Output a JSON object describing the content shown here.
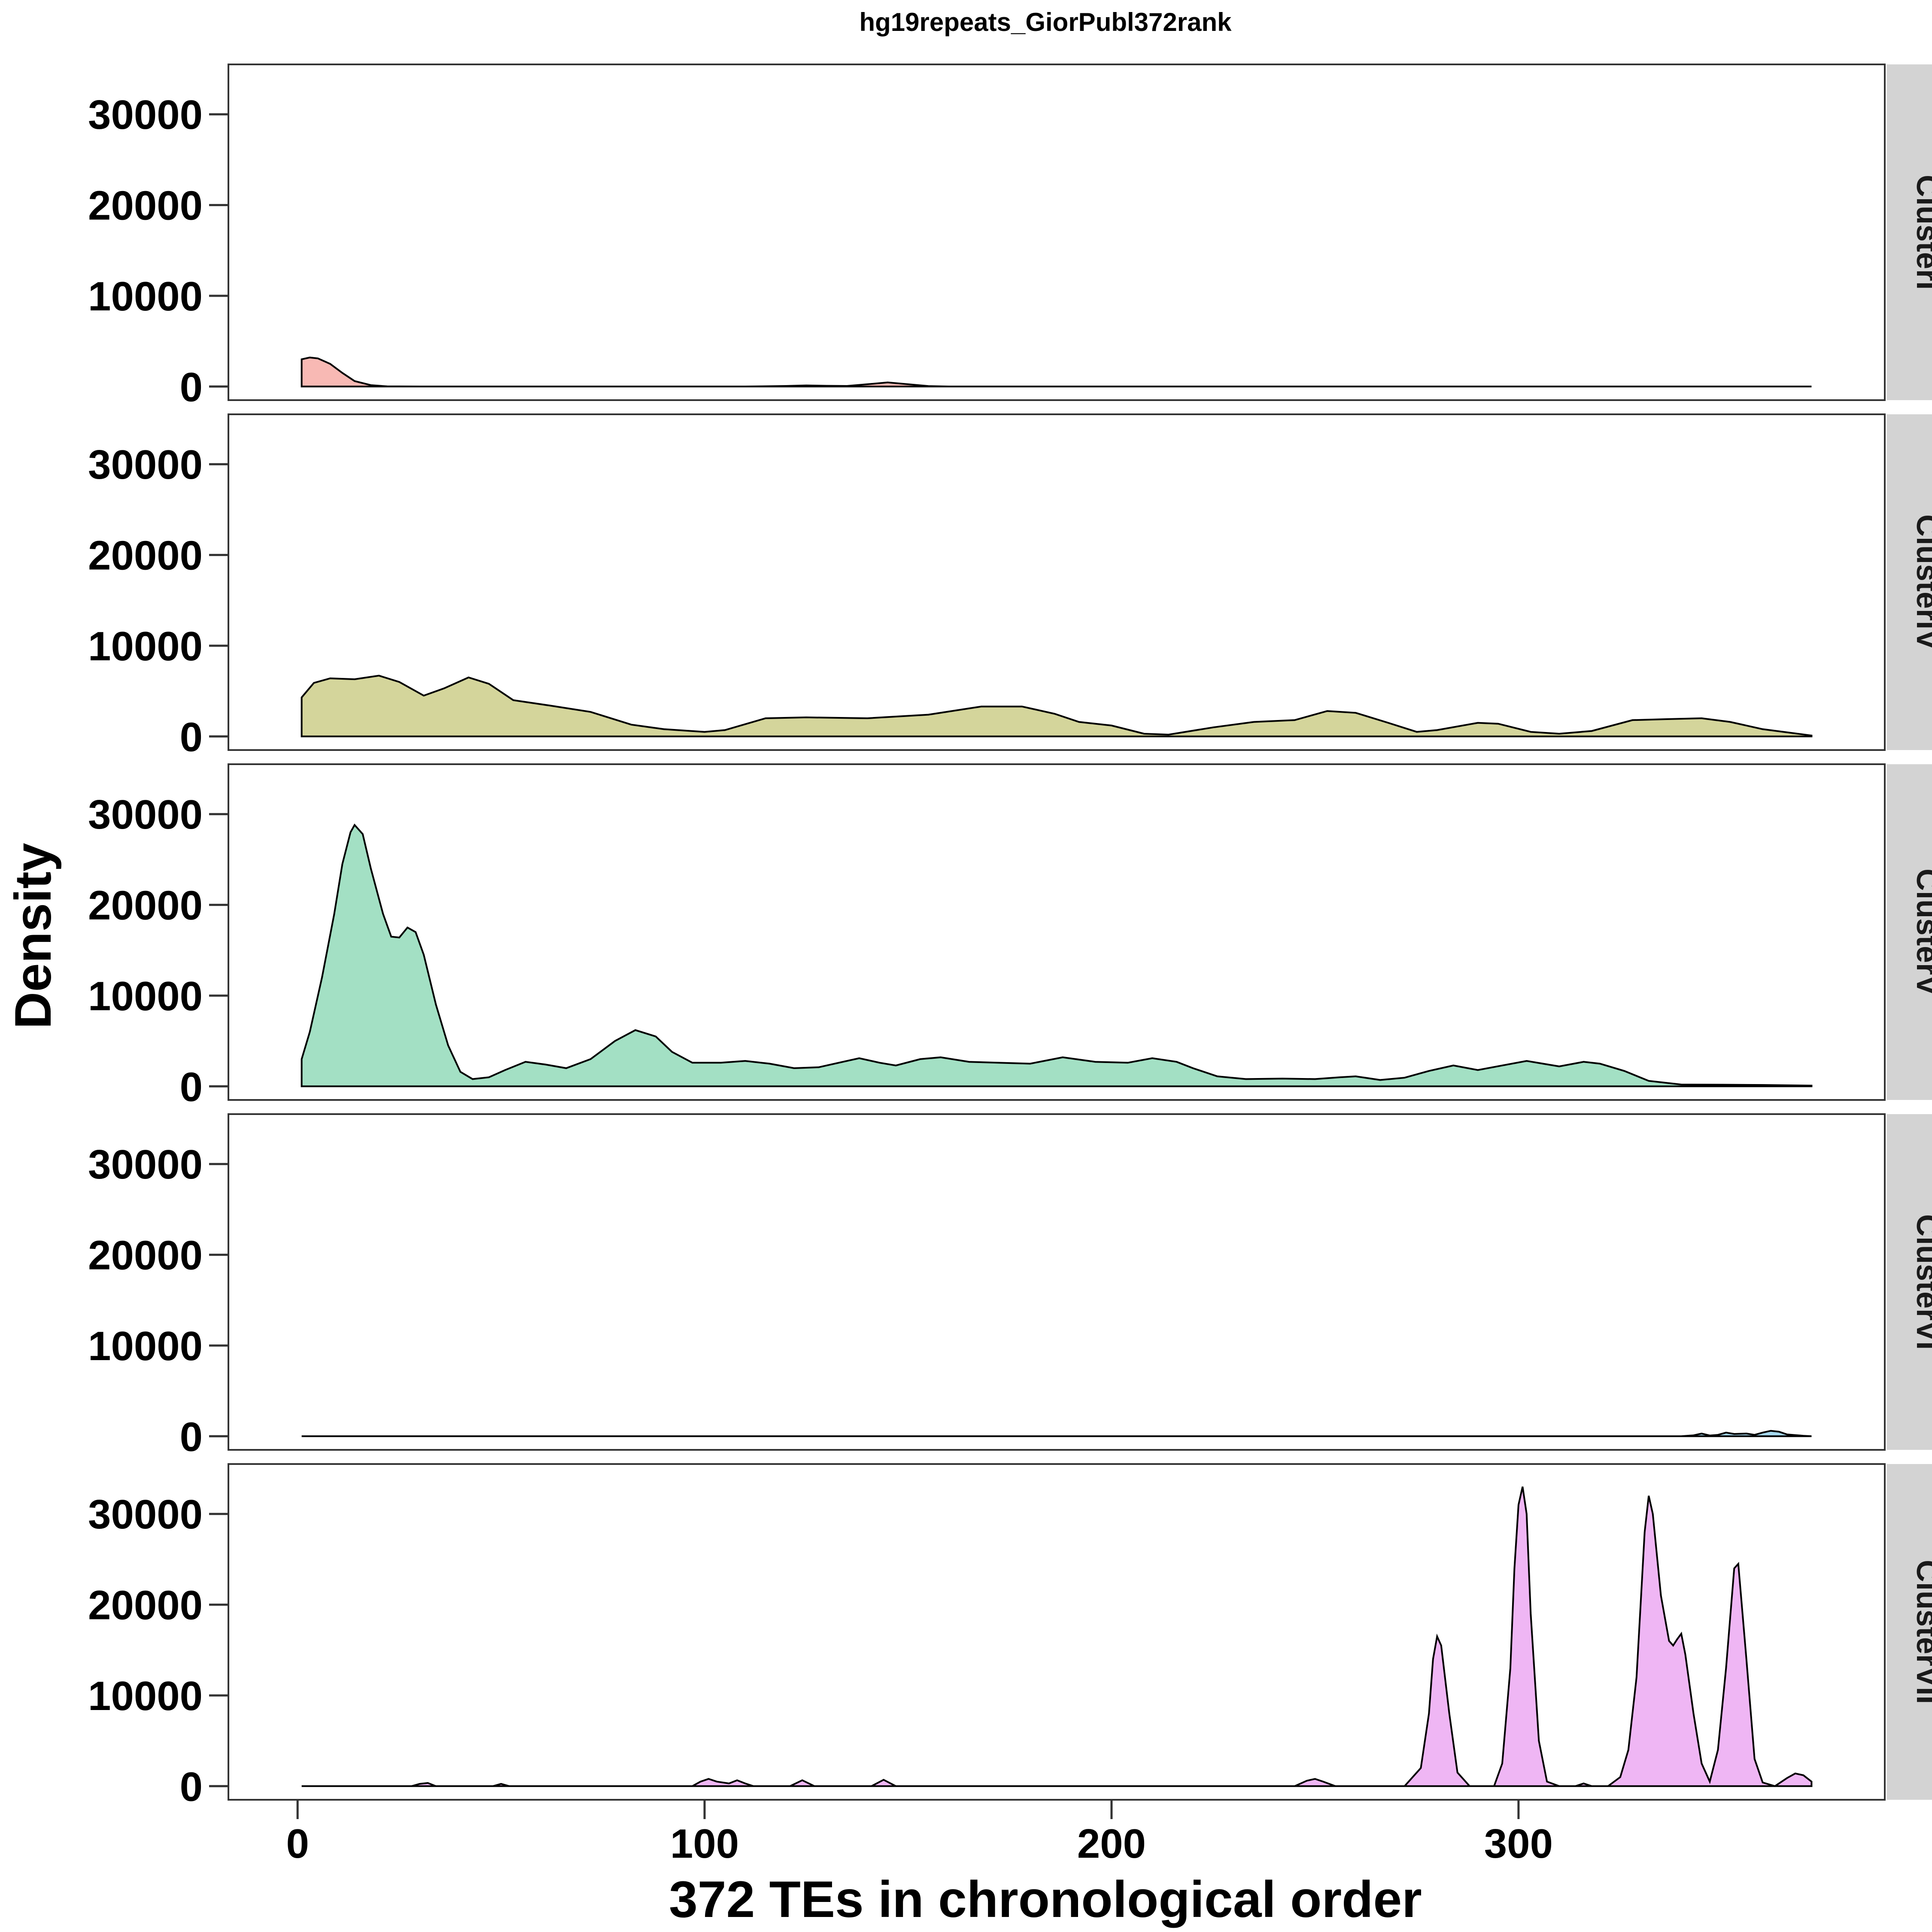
{
  "chart_data": {
    "type": "area",
    "title": "hg19repeats_GiorPubl372rank",
    "xlabel": "372 TEs in chronological order",
    "ylabel": "Density",
    "xlim": [
      -17,
      390
    ],
    "ylim": [
      -1500,
      35500
    ],
    "x_ticks": [
      0,
      100,
      200,
      300
    ],
    "y_ticks": [
      0,
      10000,
      20000,
      30000
    ],
    "y_tick_labels": [
      "0",
      "10000",
      "20000",
      "30000"
    ],
    "x_tick_labels": [
      "0",
      "100",
      "200",
      "300"
    ],
    "grid": false,
    "legend": "none",
    "series": [
      {
        "name": "ClusterI",
        "color": "#F8B9B4",
        "points": [
          [
            1,
            3000
          ],
          [
            3,
            3200
          ],
          [
            5,
            3100
          ],
          [
            8,
            2500
          ],
          [
            11,
            1500
          ],
          [
            14,
            600
          ],
          [
            18,
            150
          ],
          [
            22,
            20
          ],
          [
            30,
            0
          ],
          [
            110,
            0
          ],
          [
            120,
            60
          ],
          [
            125,
            120
          ],
          [
            130,
            80
          ],
          [
            135,
            60
          ],
          [
            140,
            250
          ],
          [
            145,
            450
          ],
          [
            150,
            250
          ],
          [
            155,
            50
          ],
          [
            160,
            0
          ],
          [
            200,
            0
          ],
          [
            300,
            0
          ],
          [
            372,
            0
          ]
        ]
      },
      {
        "name": "ClusterIV",
        "color": "#D4D59B",
        "points": [
          [
            1,
            4300
          ],
          [
            4,
            5900
          ],
          [
            8,
            6400
          ],
          [
            14,
            6300
          ],
          [
            20,
            6700
          ],
          [
            25,
            6000
          ],
          [
            31,
            4500
          ],
          [
            36,
            5300
          ],
          [
            42,
            6500
          ],
          [
            47,
            5800
          ],
          [
            53,
            4000
          ],
          [
            62,
            3400
          ],
          [
            72,
            2700
          ],
          [
            82,
            1300
          ],
          [
            90,
            800
          ],
          [
            100,
            500
          ],
          [
            105,
            700
          ],
          [
            115,
            2000
          ],
          [
            125,
            2100
          ],
          [
            140,
            2000
          ],
          [
            155,
            2400
          ],
          [
            168,
            3300
          ],
          [
            178,
            3300
          ],
          [
            186,
            2500
          ],
          [
            192,
            1600
          ],
          [
            200,
            1200
          ],
          [
            208,
            300
          ],
          [
            214,
            200
          ],
          [
            225,
            1000
          ],
          [
            235,
            1600
          ],
          [
            245,
            1800
          ],
          [
            253,
            2800
          ],
          [
            260,
            2600
          ],
          [
            268,
            1500
          ],
          [
            275,
            500
          ],
          [
            280,
            700
          ],
          [
            290,
            1500
          ],
          [
            295,
            1400
          ],
          [
            303,
            500
          ],
          [
            310,
            300
          ],
          [
            318,
            600
          ],
          [
            328,
            1800
          ],
          [
            336,
            1900
          ],
          [
            345,
            2000
          ],
          [
            352,
            1600
          ],
          [
            360,
            800
          ],
          [
            372,
            100
          ]
        ]
      },
      {
        "name": "ClusterV",
        "color": "#A3E0C4",
        "points": [
          [
            1,
            3000
          ],
          [
            3,
            6000
          ],
          [
            6,
            12000
          ],
          [
            9,
            19000
          ],
          [
            11,
            24500
          ],
          [
            13,
            28000
          ],
          [
            14,
            28800
          ],
          [
            16,
            27800
          ],
          [
            18,
            24000
          ],
          [
            21,
            19000
          ],
          [
            23,
            16500
          ],
          [
            25,
            16400
          ],
          [
            27,
            17500
          ],
          [
            29,
            17000
          ],
          [
            31,
            14500
          ],
          [
            34,
            9000
          ],
          [
            37,
            4500
          ],
          [
            40,
            1600
          ],
          [
            43,
            800
          ],
          [
            47,
            1000
          ],
          [
            51,
            1800
          ],
          [
            56,
            2700
          ],
          [
            61,
            2400
          ],
          [
            66,
            2000
          ],
          [
            72,
            3000
          ],
          [
            78,
            5000
          ],
          [
            83,
            6200
          ],
          [
            88,
            5500
          ],
          [
            92,
            3800
          ],
          [
            97,
            2600
          ],
          [
            104,
            2600
          ],
          [
            110,
            2800
          ],
          [
            116,
            2500
          ],
          [
            122,
            2000
          ],
          [
            128,
            2100
          ],
          [
            134,
            2700
          ],
          [
            138,
            3100
          ],
          [
            143,
            2600
          ],
          [
            147,
            2300
          ],
          [
            153,
            3000
          ],
          [
            158,
            3200
          ],
          [
            165,
            2700
          ],
          [
            172,
            2600
          ],
          [
            180,
            2500
          ],
          [
            188,
            3200
          ],
          [
            196,
            2700
          ],
          [
            204,
            2600
          ],
          [
            210,
            3100
          ],
          [
            216,
            2700
          ],
          [
            220,
            2000
          ],
          [
            226,
            1100
          ],
          [
            233,
            800
          ],
          [
            242,
            850
          ],
          [
            250,
            800
          ],
          [
            256,
            1000
          ],
          [
            260,
            1100
          ],
          [
            266,
            700
          ],
          [
            272,
            950
          ],
          [
            278,
            1700
          ],
          [
            284,
            2300
          ],
          [
            290,
            1800
          ],
          [
            296,
            2300
          ],
          [
            302,
            2800
          ],
          [
            306,
            2500
          ],
          [
            310,
            2200
          ],
          [
            316,
            2700
          ],
          [
            320,
            2500
          ],
          [
            326,
            1700
          ],
          [
            332,
            600
          ],
          [
            340,
            200
          ],
          [
            350,
            180
          ],
          [
            360,
            150
          ],
          [
            372,
            80
          ]
        ]
      },
      {
        "name": "ClusterVI",
        "color": "#A5D8EE",
        "points": [
          [
            1,
            0
          ],
          [
            340,
            0
          ],
          [
            343,
            100
          ],
          [
            345,
            300
          ],
          [
            347,
            80
          ],
          [
            349,
            150
          ],
          [
            351,
            400
          ],
          [
            353,
            250
          ],
          [
            356,
            300
          ],
          [
            358,
            150
          ],
          [
            360,
            400
          ],
          [
            362,
            600
          ],
          [
            364,
            500
          ],
          [
            366,
            200
          ],
          [
            370,
            50
          ],
          [
            372,
            0
          ]
        ]
      },
      {
        "name": "ClusterVII",
        "color": "#EFB6F4",
        "points": [
          [
            1,
            0
          ],
          [
            28,
            0
          ],
          [
            30,
            250
          ],
          [
            32,
            350
          ],
          [
            34,
            0
          ],
          [
            48,
            0
          ],
          [
            50,
            250
          ],
          [
            52,
            0
          ],
          [
            97,
            0
          ],
          [
            99,
            500
          ],
          [
            101,
            800
          ],
          [
            103,
            500
          ],
          [
            106,
            300
          ],
          [
            108,
            650
          ],
          [
            110,
            300
          ],
          [
            112,
            0
          ],
          [
            121,
            0
          ],
          [
            124,
            650
          ],
          [
            127,
            0
          ],
          [
            141,
            0
          ],
          [
            144,
            700
          ],
          [
            147,
            0
          ],
          [
            245,
            0
          ],
          [
            248,
            600
          ],
          [
            250,
            800
          ],
          [
            252,
            500
          ],
          [
            255,
            0
          ],
          [
            272,
            0
          ],
          [
            276,
            2000
          ],
          [
            278,
            8000
          ],
          [
            279,
            14000
          ],
          [
            280,
            16500
          ],
          [
            281,
            15500
          ],
          [
            283,
            8000
          ],
          [
            285,
            1500
          ],
          [
            288,
            0
          ],
          [
            294,
            0
          ],
          [
            296,
            2500
          ],
          [
            298,
            13000
          ],
          [
            299,
            24000
          ],
          [
            300,
            31000
          ],
          [
            301,
            33000
          ],
          [
            302,
            30000
          ],
          [
            303,
            19000
          ],
          [
            305,
            5000
          ],
          [
            307,
            500
          ],
          [
            310,
            0
          ],
          [
            314,
            0
          ],
          [
            316,
            300
          ],
          [
            318,
            0
          ],
          [
            322,
            0
          ],
          [
            325,
            1000
          ],
          [
            327,
            4000
          ],
          [
            329,
            12000
          ],
          [
            330,
            20000
          ],
          [
            331,
            28000
          ],
          [
            332,
            32000
          ],
          [
            333,
            30000
          ],
          [
            335,
            21000
          ],
          [
            337,
            16000
          ],
          [
            338,
            15500
          ],
          [
            339,
            16200
          ],
          [
            340,
            16800
          ],
          [
            341,
            14500
          ],
          [
            343,
            8000
          ],
          [
            345,
            2500
          ],
          [
            347,
            500
          ],
          [
            349,
            4000
          ],
          [
            351,
            13000
          ],
          [
            353,
            24000
          ],
          [
            354,
            24500
          ],
          [
            356,
            14000
          ],
          [
            358,
            3000
          ],
          [
            360,
            400
          ],
          [
            363,
            0
          ],
          [
            366,
            900
          ],
          [
            368,
            1400
          ],
          [
            370,
            1200
          ],
          [
            372,
            500
          ]
        ]
      }
    ]
  }
}
